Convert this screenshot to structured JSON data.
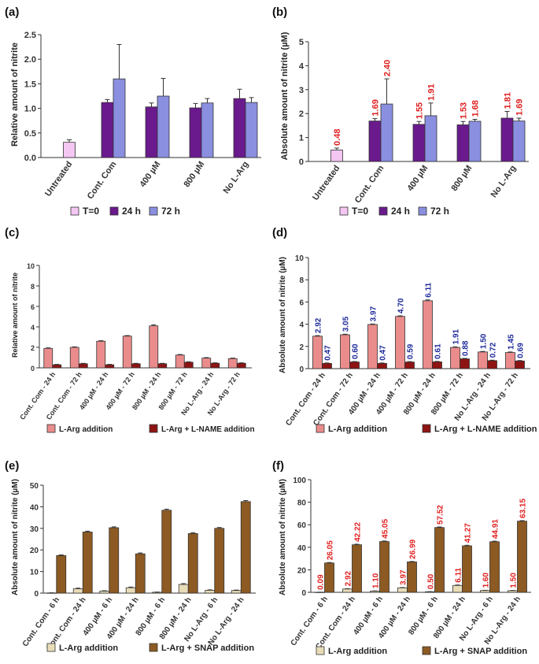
{
  "colors": {
    "t0": "#f4c6f2",
    "h24": "#6a1a8c",
    "h72": "#8a8fe0",
    "pink": "#ea8c8c",
    "darkred": "#8e1414",
    "beige": "#e8dcb8",
    "brown": "#8c5a22",
    "label_red": "#e02020",
    "label_blue": "#1e2a9a"
  },
  "chart_data": [
    {
      "panel": "(a)",
      "type": "bar",
      "ylabel": "Relative amount of nitrite",
      "ylim": [
        0,
        2.5
      ],
      "yticks": [
        "0.0",
        "0.5",
        "1.0",
        "1.5",
        "2.0",
        "2.5"
      ],
      "categories": [
        "Untreated",
        "Cont. Com",
        "400 µM",
        "800 µM",
        "No L-Arg"
      ],
      "series": [
        {
          "name": "T=0",
          "color": "t0",
          "values": [
            0.31,
            null,
            null,
            null,
            null
          ],
          "errors": [
            0.05,
            null,
            null,
            null,
            null
          ]
        },
        {
          "name": "24 h",
          "color": "h24",
          "values": [
            null,
            1.12,
            1.03,
            1.01,
            1.2
          ],
          "errors": [
            null,
            0.06,
            0.08,
            0.09,
            0.19
          ]
        },
        {
          "name": "72 h",
          "color": "h72",
          "values": [
            null,
            1.6,
            1.25,
            1.11,
            1.12
          ],
          "errors": [
            null,
            0.7,
            0.36,
            0.09,
            0.1
          ]
        }
      ],
      "legend": [
        "T=0",
        "24 h",
        "72 h"
      ]
    },
    {
      "panel": "(b)",
      "type": "bar",
      "ylabel": "Absolute amount of nitrite (µM)",
      "ylim": [
        0,
        5
      ],
      "yticks": [
        "0",
        "1",
        "2",
        "3",
        "4",
        "5"
      ],
      "categories": [
        "Untreated",
        "Cont. Com",
        "400 µM",
        "800 µM",
        "No L-Arg"
      ],
      "series": [
        {
          "name": "T=0",
          "color": "t0",
          "values": [
            0.48,
            null,
            null,
            null,
            null
          ],
          "labels": [
            "0.48",
            null,
            null,
            null,
            null
          ],
          "errors": [
            0.08,
            null,
            null,
            null,
            null
          ]
        },
        {
          "name": "24 h",
          "color": "h24",
          "values": [
            null,
            1.69,
            1.55,
            1.53,
            1.81
          ],
          "labels": [
            null,
            "1.69",
            "1.55",
            "1.53",
            "1.81"
          ],
          "errors": [
            null,
            0.1,
            0.12,
            0.14,
            0.28
          ]
        },
        {
          "name": "72 h",
          "color": "h72",
          "values": [
            null,
            2.4,
            1.91,
            1.68,
            1.69
          ],
          "labels": [
            null,
            "2.40",
            "1.91",
            "1.68",
            "1.69"
          ],
          "errors": [
            null,
            1.05,
            0.53,
            0.08,
            0.12
          ]
        }
      ],
      "labelColor": "label_red",
      "legend": [
        "T=0",
        "24 h",
        "72 h"
      ]
    },
    {
      "panel": "(c)",
      "type": "bar",
      "ylabel": "Relative amount of nitrite",
      "ylim": [
        0,
        10
      ],
      "yticks": [
        "0",
        "2",
        "4",
        "6",
        "8",
        "10"
      ],
      "categories": [
        "Cont. Com - 24 h",
        "Cont. Com - 72 h",
        "400 µM - 24 h",
        "400 µM - 72 h",
        "800 µM - 24 h",
        "800 µM - 72 h",
        "No L-Arg - 24 h",
        "No L-Arg - 72 h"
      ],
      "series": [
        {
          "name": "L-Arg addition",
          "color": "pink",
          "values": [
            1.9,
            2.0,
            2.6,
            3.1,
            4.1,
            1.25,
            0.95,
            0.9
          ],
          "errors": [
            0.05,
            0.05,
            0.05,
            0.05,
            0.1,
            0.05,
            0.05,
            0.05
          ]
        },
        {
          "name": "L-Arg + L-NAME addition",
          "color": "darkred",
          "values": [
            0.3,
            0.4,
            0.3,
            0.4,
            0.4,
            0.55,
            0.45,
            0.45
          ],
          "errors": [
            0.04,
            0.04,
            0.04,
            0.04,
            0.04,
            0.04,
            0.04,
            0.04
          ]
        }
      ],
      "legend": [
        "L-Arg addition",
        "L-Arg + L-NAME addition"
      ]
    },
    {
      "panel": "(d)",
      "type": "bar",
      "ylabel": "Absolute amount of nitrite (µM)",
      "ylim": [
        0,
        10
      ],
      "yticks": [
        "0",
        "2",
        "4",
        "6",
        "8",
        "10"
      ],
      "categories": [
        "Cont. Com - 24 h",
        "Cont. Com - 72 h",
        "400 µM - 24 h",
        "400 µM - 72 h",
        "800 µM - 24 h",
        "800 µM - 72 h",
        "No L-Arg - 24 h",
        "No L-Arg - 72 h"
      ],
      "series": [
        {
          "name": "L-Arg addition",
          "color": "pink",
          "values": [
            2.92,
            3.05,
            3.97,
            4.7,
            6.11,
            1.91,
            1.5,
            1.45
          ],
          "labels": [
            "2.92",
            "3.05",
            "3.97",
            "4.70",
            "6.11",
            "1.91",
            "1.50",
            "1.45"
          ],
          "errors": [
            0.05,
            0.05,
            0.05,
            0.05,
            0.08,
            0.05,
            0.05,
            0.05
          ]
        },
        {
          "name": "L-Arg + L-NAME addition",
          "color": "darkred",
          "values": [
            0.47,
            0.6,
            0.47,
            0.59,
            0.61,
            0.88,
            0.72,
            0.69
          ],
          "labels": [
            "0.47",
            "0.60",
            "0.47",
            "0.59",
            "0.61",
            "0.88",
            "0.72",
            "0.69"
          ],
          "errors": [
            0.04,
            0.04,
            0.04,
            0.04,
            0.04,
            0.04,
            0.04,
            0.04
          ]
        }
      ],
      "labelColor": "label_blue",
      "legend": [
        "L-Arg addition",
        "L-Arg + L-NAME addition"
      ]
    },
    {
      "panel": "(e)",
      "type": "bar",
      "ylabel": "Absolute amount of nitrite (µM)",
      "ylim": [
        0,
        50
      ],
      "yticks": [
        "0",
        "10",
        "20",
        "30",
        "40",
        "50"
      ],
      "categories": [
        "Cont. Com - 6 h",
        "Cont. Com - 24 h",
        "400 µM - 6 h",
        "400 µM - 24 h",
        "800 µM - 6 h",
        "800 µM - 24 h",
        "No L-Arg - 6 h",
        "No L-Arg - 24 h"
      ],
      "series": [
        {
          "name": "L-Arg addition",
          "color": "beige",
          "values": [
            0.09,
            2.0,
            0.9,
            2.5,
            0.4,
            4.0,
            1.3,
            1.2
          ],
          "errors": [
            0.05,
            0.3,
            0.2,
            0.3,
            0.1,
            0.4,
            0.2,
            0.2
          ]
        },
        {
          "name": "L-Arg + SNAP addition",
          "color": "brown",
          "values": [
            17.4,
            28.3,
            30.3,
            18.2,
            38.4,
            27.6,
            30.0,
            42.4
          ],
          "errors": [
            0.3,
            0.4,
            0.4,
            0.4,
            0.5,
            0.4,
            0.4,
            0.5
          ]
        }
      ],
      "legend": [
        "L-Arg addition",
        "L-Arg + SNAP addition"
      ]
    },
    {
      "panel": "(f)",
      "type": "bar",
      "ylabel": "Absolute amount of nitrite (µM)",
      "ylim": [
        0,
        100
      ],
      "yticks": [
        "0",
        "20",
        "40",
        "60",
        "80",
        "100"
      ],
      "categories": [
        "Cont. Com - 6 h",
        "Cont. Com - 24 h",
        "400 µM - 6 h",
        "400 µM - 24 h",
        "800 µM - 6 h",
        "800 µM - 24 h",
        "No L-Arg - 6 h",
        "No L-Arg - 24 h"
      ],
      "series": [
        {
          "name": "L-Arg addition",
          "color": "beige",
          "values": [
            0.09,
            2.92,
            1.1,
            3.97,
            0.5,
            6.11,
            1.6,
            1.5
          ],
          "labels": [
            "0.09",
            "2.92",
            "1.10",
            "3.97",
            "0.50",
            "6.11",
            "1.60",
            "1.50"
          ],
          "errors": [
            0.05,
            0.3,
            0.2,
            0.3,
            0.1,
            0.4,
            0.2,
            0.2
          ]
        },
        {
          "name": "L-Arg + SNAP addition",
          "color": "brown",
          "values": [
            26.05,
            42.22,
            45.05,
            26.99,
            57.52,
            41.27,
            44.91,
            63.15
          ],
          "labels": [
            "26.05",
            "42.22",
            "45.05",
            "26.99",
            "57.52",
            "41.27",
            "44.91",
            "63.15"
          ],
          "errors": [
            0.4,
            0.5,
            0.5,
            0.4,
            0.5,
            0.5,
            0.5,
            0.5
          ]
        }
      ],
      "labelColor": "label_red",
      "legend": [
        "L-Arg addition",
        "L-Arg + SNAP addition"
      ]
    }
  ]
}
